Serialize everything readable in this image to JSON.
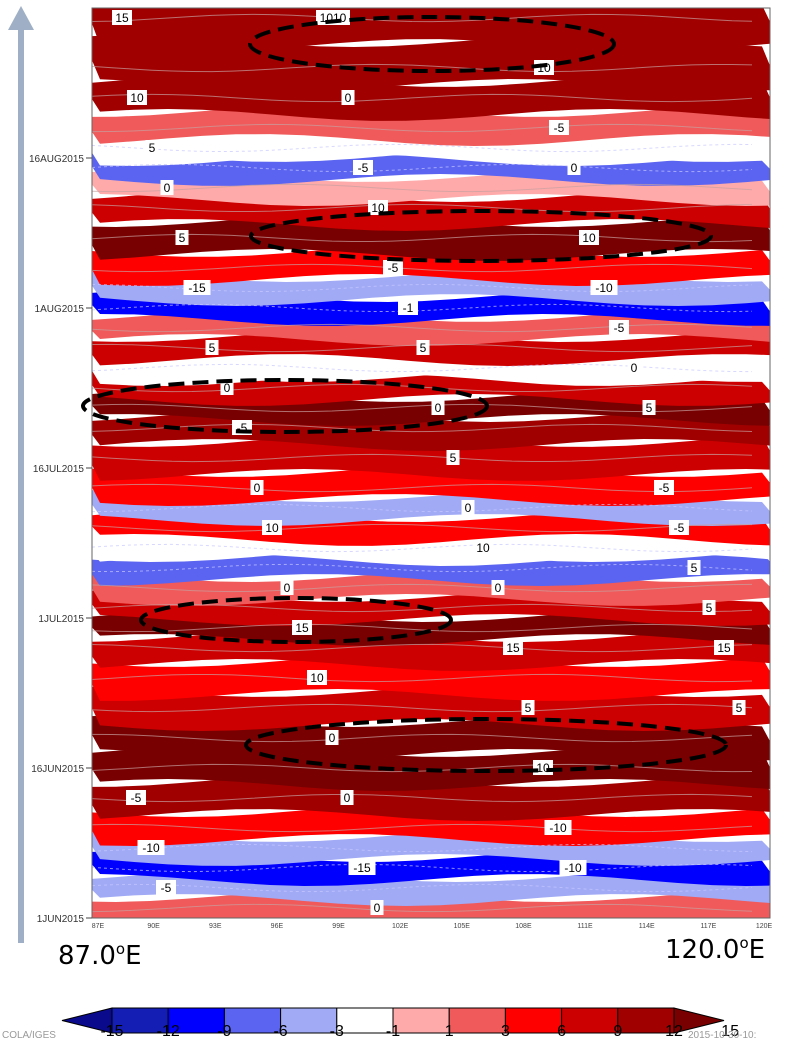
{
  "chart_data": {
    "type": "heatmap",
    "title": "",
    "xlabel": "",
    "ylabel": "",
    "x_ticks": [
      "87E",
      "90E",
      "93E",
      "96E",
      "99E",
      "102E",
      "105E",
      "108E",
      "111E",
      "114E",
      "117E",
      "120E"
    ],
    "y_ticks": [
      "16AUG2015",
      "1AUG2015",
      "16JUL2015",
      "1JUL2015",
      "16JUN2015",
      "1JUN2015"
    ],
    "x_range_labels": {
      "start": "87.0",
      "end": "120.0",
      "unit_sup": "o",
      "unit": "E"
    },
    "xlim": [
      87,
      120
    ],
    "ylim": [
      "1JUN2015",
      "31AUG2015"
    ],
    "colorbar": {
      "ticks": [
        "-15",
        "-12",
        "-9",
        "-6",
        "-3",
        "-1",
        "1",
        "3",
        "6",
        "9",
        "12",
        "15"
      ],
      "colors": [
        "#0a0a8c",
        "#141eb4",
        "#0000ff",
        "#5a64f0",
        "#a0aaf5",
        "#ffffff",
        "#ffaaaa",
        "#f05a5a",
        "#ff0000",
        "#cc0000",
        "#a00000",
        "#780000"
      ]
    },
    "bands": [
      {
        "y": "30AUG2015",
        "value": 9
      },
      {
        "y": "25AUG2015",
        "value": 10
      },
      {
        "y": "22AUG2015",
        "value": 9
      },
      {
        "y": "19AUG2015",
        "value": 2
      },
      {
        "y": "17AUG2015",
        "value": -3
      },
      {
        "y": "15AUG2015",
        "value": -7
      },
      {
        "y": "13AUG2015",
        "value": 0
      },
      {
        "y": "11AUG2015",
        "value": 7
      },
      {
        "y": "8AUG2015",
        "value": 12
      },
      {
        "y": "5AUG2015",
        "value": 4
      },
      {
        "y": "3AUG2015",
        "value": -6
      },
      {
        "y": "1AUG2015",
        "value": -10
      },
      {
        "y": "30JUL2015",
        "value": 2
      },
      {
        "y": "28JUL2015",
        "value": 6
      },
      {
        "y": "26JUL2015",
        "value": -2
      },
      {
        "y": "24JUL2015",
        "value": 8
      },
      {
        "y": "22JUL2015",
        "value": 13
      },
      {
        "y": "20JUL2015",
        "value": 10
      },
      {
        "y": "17JUL2015",
        "value": 7
      },
      {
        "y": "14JUL2015",
        "value": 4
      },
      {
        "y": "12JUL2015",
        "value": -4
      },
      {
        "y": "10JUL2015",
        "value": 3
      },
      {
        "y": "8JUL2015",
        "value": -2
      },
      {
        "y": "6JUL2015",
        "value": -7
      },
      {
        "y": "4JUL2015",
        "value": 2
      },
      {
        "y": "2JUL2015",
        "value": 8
      },
      {
        "y": "30JUN2015",
        "value": 12
      },
      {
        "y": "28JUN2015",
        "value": 6
      },
      {
        "y": "25JUN2015",
        "value": 3
      },
      {
        "y": "22JUN2015",
        "value": 8
      },
      {
        "y": "19JUN2015",
        "value": 12
      },
      {
        "y": "16JUN2015",
        "value": 13
      },
      {
        "y": "13JUN2015",
        "value": 9
      },
      {
        "y": "10JUN2015",
        "value": 5
      },
      {
        "y": "8JUN2015",
        "value": -4
      },
      {
        "y": "6JUN2015",
        "value": -10
      },
      {
        "y": "4JUN2015",
        "value": -6
      },
      {
        "y": "2JUN2015",
        "value": 1
      }
    ],
    "contour_labels": [
      "15",
      "1010",
      "10",
      "10",
      "0",
      "-5",
      "5",
      "-5",
      "0",
      "0",
      "10",
      "10",
      "5",
      "-5",
      "-10",
      "-15",
      "-1",
      "-5",
      "5",
      "5",
      "0",
      "0",
      "0",
      "5",
      "-5",
      "5",
      "-5",
      "0",
      "0",
      "-5",
      "10",
      "10",
      "5",
      "0",
      "0",
      "5",
      "15",
      "15",
      "15",
      "10",
      "5",
      "5",
      "0",
      "10",
      "-5",
      "0",
      "-10",
      "-10",
      "-15",
      "-10",
      "-5",
      "0"
    ]
  },
  "axis_extra": {
    "left_label": "87.0",
    "right_label": "120.0",
    "unit_sup": "o",
    "unit": "E"
  },
  "footer": {
    "left": "COLA/IGES",
    "right": "2015-10-30-10:"
  }
}
